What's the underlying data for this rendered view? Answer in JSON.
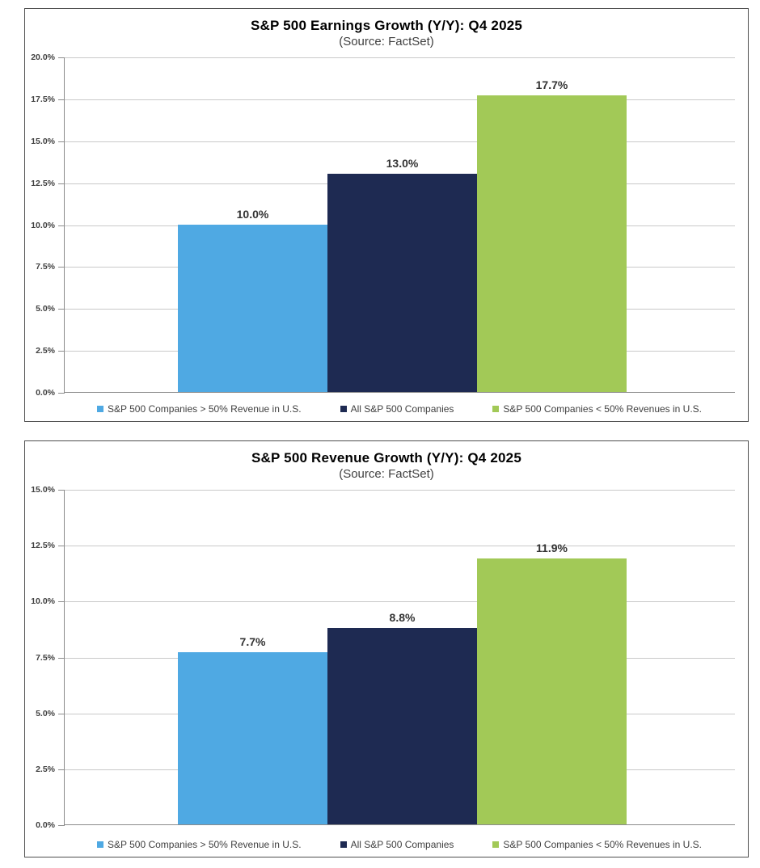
{
  "chart_data": [
    {
      "type": "bar",
      "title": "S&P 500 Earnings Growth (Y/Y): Q4 2025",
      "subtitle": "(Source: FactSet)",
      "categories": [
        "S&P 500 Companies > 50% Revenue in U.S.",
        "All S&P 500 Companies",
        "S&P 500 Companies < 50% Revenues in U.S."
      ],
      "values": [
        10.0,
        13.0,
        17.7
      ],
      "value_labels": [
        "10.0%",
        "13.0%",
        "17.7%"
      ],
      "colors": [
        "#4FA9E3",
        "#1E2A52",
        "#A2C957"
      ],
      "ylim": [
        0,
        20
      ],
      "ytick_step": 2.5,
      "ytick_labels": [
        "0.0%",
        "2.5%",
        "5.0%",
        "7.5%",
        "10.0%",
        "12.5%",
        "15.0%",
        "17.5%",
        "20.0%"
      ],
      "grid": true,
      "legend_position": "bottom"
    },
    {
      "type": "bar",
      "title": "S&P 500 Revenue Growth (Y/Y): Q4 2025",
      "subtitle": "(Source: FactSet)",
      "categories": [
        "S&P 500 Companies > 50% Revenue in U.S.",
        "All S&P 500 Companies",
        "S&P 500 Companies < 50% Revenues in U.S."
      ],
      "values": [
        7.7,
        8.8,
        11.9
      ],
      "value_labels": [
        "7.7%",
        "8.8%",
        "11.9%"
      ],
      "colors": [
        "#4FA9E3",
        "#1E2A52",
        "#A2C957"
      ],
      "ylim": [
        0,
        15
      ],
      "ytick_step": 2.5,
      "ytick_labels": [
        "0.0%",
        "2.5%",
        "5.0%",
        "7.5%",
        "10.0%",
        "12.5%",
        "15.0%"
      ],
      "grid": true,
      "legend_position": "bottom"
    }
  ]
}
